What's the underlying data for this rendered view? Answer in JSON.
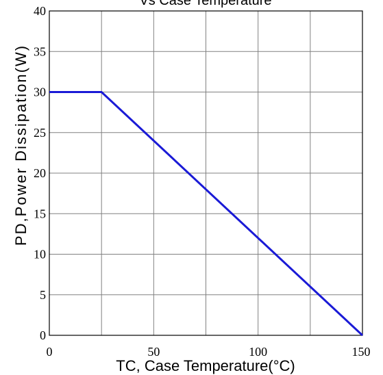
{
  "chart_data": {
    "type": "line",
    "title": "Vs Case Temperature",
    "xlabel": "TC, Case Temperature(°C)",
    "ylabel": "PD,Power Dissipation(W)",
    "xlim": [
      0,
      150
    ],
    "ylim": [
      0,
      40
    ],
    "xticks": [
      0,
      25,
      50,
      75,
      100,
      125,
      150
    ],
    "xtick_labels": [
      "0",
      "",
      "50",
      "",
      "100",
      "",
      "150"
    ],
    "yticks": [
      0,
      5,
      10,
      15,
      20,
      25,
      30,
      35,
      40
    ],
    "ytick_labels": [
      "0",
      "5",
      "10",
      "15",
      "20",
      "25",
      "30",
      "35",
      "40"
    ],
    "grid": true,
    "series": [
      {
        "x": [
          0,
          25,
          150
        ],
        "y": [
          30,
          30,
          0
        ],
        "color": "#1a1ad6"
      }
    ]
  }
}
